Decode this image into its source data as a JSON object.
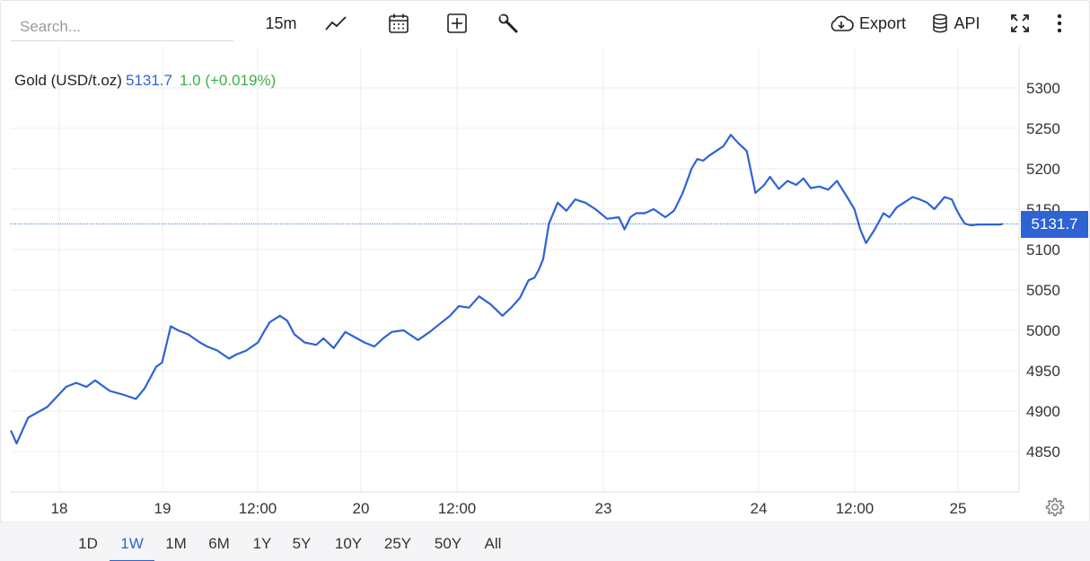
{
  "toolbar": {
    "search_placeholder": "Search...",
    "interval": "15m",
    "export_label": "Export",
    "api_label": "API",
    "icons": [
      "line-chart-icon",
      "calendar-icon",
      "add-indicator-icon",
      "wrench-icon",
      "cloud-download-icon",
      "database-icon",
      "fullscreen-icon",
      "more-vertical-icon"
    ]
  },
  "legend": {
    "name": "Gold (USD/t.oz)",
    "price": "5131.7",
    "change": "1.0 (+0.019%)"
  },
  "price_tag": "5131.7",
  "ranges": {
    "items": [
      "1D",
      "1W",
      "1M",
      "6M",
      "1Y",
      "5Y",
      "10Y",
      "25Y",
      "50Y",
      "All"
    ],
    "active": "1W"
  },
  "colors": {
    "line": "#2e63d4",
    "positive": "#3cb043",
    "grid": "#ececec"
  },
  "chart_data": {
    "type": "line",
    "title": "Gold (USD/t.oz)",
    "x_ticks": [
      "18",
      "19",
      "12:00",
      "20",
      "12:00",
      "23",
      "24",
      "12:00",
      "25"
    ],
    "y_ticks": [
      4850,
      4900,
      4950,
      5000,
      5050,
      5100,
      5150,
      5200,
      5250,
      5300
    ],
    "ylim": [
      4800,
      5330
    ],
    "last_price": 5131.7,
    "grid": true,
    "series": [
      {
        "name": "Gold (USD/t.oz)",
        "x": [
          0.0,
          0.04,
          0.12,
          0.25,
          0.38,
          0.45,
          0.52,
          0.58,
          0.68,
          0.78,
          0.86,
          0.92,
          1.0,
          1.04,
          1.1,
          1.15,
          1.22,
          1.3,
          1.35,
          1.42,
          1.5,
          1.55,
          1.62,
          1.7,
          1.74,
          1.78,
          1.85,
          1.9,
          1.95,
          2.02,
          2.1,
          2.15,
          2.22,
          2.3,
          2.38,
          2.43,
          2.5,
          2.56,
          2.62,
          2.7,
          2.8,
          2.88,
          2.95,
          3.02,
          3.08,
          3.15,
          3.22,
          3.3,
          3.38,
          3.44,
          3.5,
          3.56,
          3.6,
          3.63,
          3.66,
          3.7,
          3.76,
          3.82,
          3.88,
          3.95,
          4.02,
          4.1,
          4.18,
          4.22,
          4.26,
          4.3,
          4.36,
          4.42,
          4.5,
          4.56,
          4.62,
          4.68,
          4.72,
          4.76,
          4.8,
          4.85,
          4.9,
          4.95,
          5.0,
          5.06,
          5.12,
          5.18,
          5.22,
          5.28,
          5.34,
          5.4,
          5.45,
          5.5,
          5.56,
          5.62,
          5.68,
          5.75,
          5.8,
          5.84,
          5.88,
          5.94,
          6.0,
          6.04,
          6.09,
          6.14,
          6.2,
          6.25,
          6.3,
          6.35,
          6.42,
          6.47,
          6.5,
          6.53,
          6.56,
          6.6,
          6.65,
          6.7,
          6.76,
          6.8,
          6.82
        ],
        "values": [
          4876,
          4860,
          4892,
          4905,
          4930,
          4935,
          4930,
          4938,
          4925,
          4920,
          4915,
          4928,
          4955,
          4960,
          5005,
          5000,
          4995,
          4985,
          4980,
          4975,
          4965,
          4970,
          4975,
          4985,
          4998,
          5010,
          5018,
          5012,
          4995,
          4985,
          4982,
          4990,
          4978,
          4998,
          4990,
          4985,
          4980,
          4990,
          4998,
          5000,
          4988,
          4998,
          5008,
          5018,
          5030,
          5028,
          5042,
          5032,
          5018,
          5028,
          5040,
          5062,
          5065,
          5075,
          5088,
          5132,
          5158,
          5148,
          5162,
          5158,
          5150,
          5138,
          5140,
          5125,
          5140,
          5145,
          5145,
          5150,
          5140,
          5148,
          5170,
          5200,
          5212,
          5210,
          5216,
          5222,
          5228,
          5242,
          5232,
          5222,
          5170,
          5180,
          5190,
          5175,
          5185,
          5180,
          5188,
          5176,
          5178,
          5174,
          5185,
          5165,
          5150,
          5125,
          5108,
          5125,
          5145,
          5140,
          5152,
          5158,
          5165,
          5162,
          5158,
          5150,
          5165,
          5162,
          5150,
          5140,
          5132,
          5130,
          5131,
          5131,
          5131,
          5131,
          5131.7
        ]
      }
    ]
  }
}
